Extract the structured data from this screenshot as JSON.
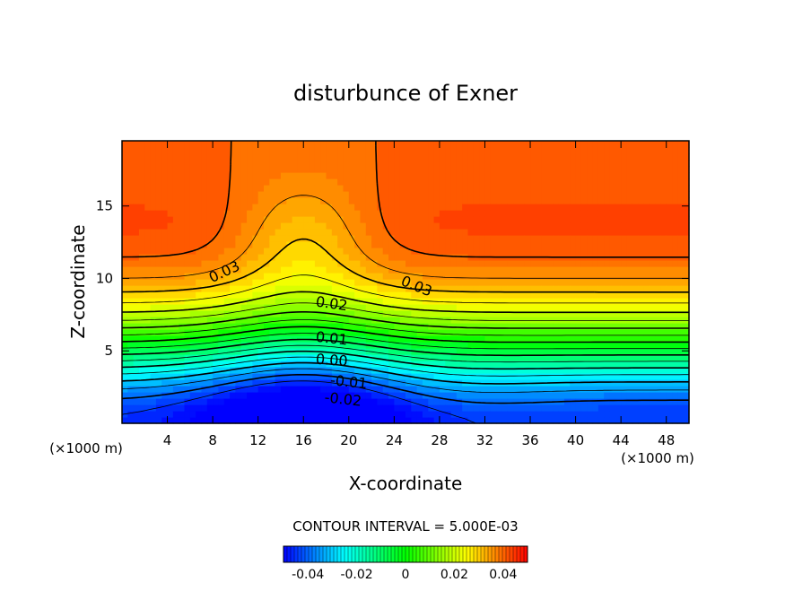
{
  "chart_data": {
    "type": "heatmap",
    "title": "disturbunce of Exner",
    "xlabel": "X-coordinate",
    "ylabel": "Z-coordinate",
    "x_unit_left": "(×1000 m)",
    "x_unit_right": "(×1000 m)",
    "xlim": [
      0,
      50
    ],
    "ylim": [
      0,
      19.5
    ],
    "x_ticks": [
      4,
      8,
      12,
      16,
      20,
      24,
      28,
      32,
      36,
      40,
      44,
      48
    ],
    "y_ticks": [
      5,
      10,
      15
    ],
    "contour_interval_text": "CONTOUR INTERVAL = 5.000E-03",
    "contour_labels": [
      "0.03",
      "0.03",
      "0.02",
      "0.01",
      "0.00",
      "-0.01",
      "-0.02"
    ],
    "colorbar": {
      "range": [
        -0.05,
        0.05
      ],
      "ticks": [
        -0.04,
        -0.02,
        0,
        0.02,
        0.04
      ],
      "tick_labels": [
        "-0.04",
        "-0.02",
        "0",
        "0.02",
        "0.04"
      ]
    },
    "field_model": "disturbance of Exner function, max ~0.04 near z=12, min ~-0.04 near surface at x=16",
    "colors": {
      "low": "#0000ff",
      "mid": "#00ff00",
      "high": "#ff0000"
    }
  }
}
